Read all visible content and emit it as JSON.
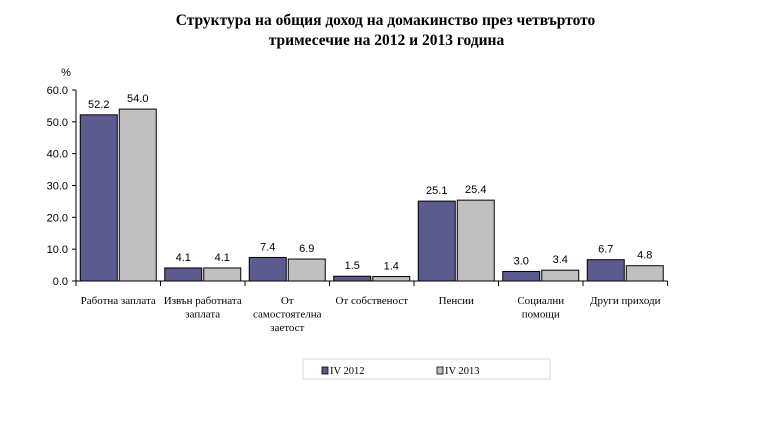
{
  "chart_data": {
    "type": "bar",
    "title_line1": "Структура на общия доход на домакинство през четвъртото",
    "title_line2": "тримесечие на 2012 и 2013 година",
    "ylabel": "%",
    "ylim": [
      0,
      60
    ],
    "yticks": [
      "0.0",
      "10.0",
      "20.0",
      "30.0",
      "40.0",
      "50.0",
      "60.0"
    ],
    "grid": false,
    "legend_position": "bottom",
    "categories": [
      [
        "Работна заплата"
      ],
      [
        "Извън работната",
        "заплата"
      ],
      [
        "От",
        "самостоятелна",
        "заетост"
      ],
      [
        "От собственост"
      ],
      [
        "Пенсии"
      ],
      [
        "Социални",
        "помощи"
      ],
      [
        "Други приходи"
      ]
    ],
    "series": [
      {
        "name": "IV 2012",
        "color": "#5b5b8f",
        "values": [
          52.2,
          4.1,
          7.4,
          1.5,
          25.1,
          3.0,
          6.7
        ],
        "labels": [
          "52.2",
          "4.1",
          "7.4",
          "1.5",
          "25.1",
          "3.0",
          "6.7"
        ]
      },
      {
        "name": "IV 2013",
        "color": "#c0c0c0",
        "values": [
          54.0,
          4.1,
          6.9,
          1.4,
          25.4,
          3.4,
          4.8
        ],
        "labels": [
          "54.0",
          "4.1",
          "6.9",
          "1.4",
          "25.4",
          "3.4",
          "4.8"
        ]
      }
    ]
  }
}
